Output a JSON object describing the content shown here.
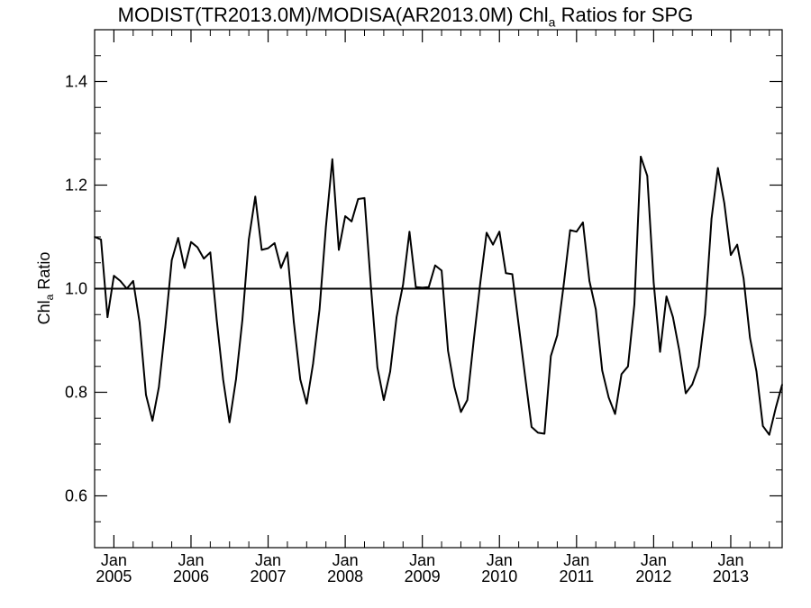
{
  "title": {
    "main": "MODIST(TR2013.0M)/MODISA(AR2013.0M)  Chl",
    "sub": "a",
    "tail": " Ratios for SPG"
  },
  "chart_data": {
    "type": "line",
    "ylabel": {
      "main": "Chl",
      "sub": "a",
      "tail": " Ratio"
    },
    "ylim": [
      0.5,
      1.5
    ],
    "yticks": [
      0.6,
      0.8,
      1.0,
      1.2,
      1.4
    ],
    "ytick_labels": [
      "0.6",
      "0.8",
      "1.0",
      "1.2",
      "1.4"
    ],
    "xlim": [
      "2004-10",
      "2013-09"
    ],
    "xticks": [
      {
        "month": "Jan",
        "year": "2005",
        "date": "2005-01"
      },
      {
        "month": "Jan",
        "year": "2006",
        "date": "2006-01"
      },
      {
        "month": "Jan",
        "year": "2007",
        "date": "2007-01"
      },
      {
        "month": "Jan",
        "year": "2008",
        "date": "2008-01"
      },
      {
        "month": "Jan",
        "year": "2009",
        "date": "2009-01"
      },
      {
        "month": "Jan",
        "year": "2010",
        "date": "2010-01"
      },
      {
        "month": "Jan",
        "year": "2011",
        "date": "2011-01"
      },
      {
        "month": "Jan",
        "year": "2012",
        "date": "2012-01"
      },
      {
        "month": "Jan",
        "year": "2013",
        "date": "2013-01"
      }
    ],
    "reference_line": 1.0,
    "series": [
      {
        "x": [
          "2004-10",
          "2004-11",
          "2004-12",
          "2005-01",
          "2005-02",
          "2005-03",
          "2005-04",
          "2005-05",
          "2005-06",
          "2005-07",
          "2005-08",
          "2005-09",
          "2005-10",
          "2005-11",
          "2005-12",
          "2006-01",
          "2006-02",
          "2006-03",
          "2006-04",
          "2006-05",
          "2006-06",
          "2006-07",
          "2006-08",
          "2006-09",
          "2006-10",
          "2006-11",
          "2006-12",
          "2007-01",
          "2007-02",
          "2007-03",
          "2007-04",
          "2007-05",
          "2007-06",
          "2007-07",
          "2007-08",
          "2007-09",
          "2007-10",
          "2007-11",
          "2007-12",
          "2008-01",
          "2008-02",
          "2008-03",
          "2008-04",
          "2008-05",
          "2008-06",
          "2008-07",
          "2008-08",
          "2008-09",
          "2008-10",
          "2008-11",
          "2008-12",
          "2009-01",
          "2009-02",
          "2009-03",
          "2009-04",
          "2009-05",
          "2009-06",
          "2009-07",
          "2009-08",
          "2009-09",
          "2009-10",
          "2009-11",
          "2009-12",
          "2010-01",
          "2010-02",
          "2010-03",
          "2010-04",
          "2010-05",
          "2010-06",
          "2010-07",
          "2010-08",
          "2010-09",
          "2010-10",
          "2010-11",
          "2010-12",
          "2011-01",
          "2011-02",
          "2011-03",
          "2011-04",
          "2011-05",
          "2011-06",
          "2011-07",
          "2011-08",
          "2011-09",
          "2011-10",
          "2011-11",
          "2011-12",
          "2012-01",
          "2012-02",
          "2012-03",
          "2012-04",
          "2012-05",
          "2012-06",
          "2012-07",
          "2012-08",
          "2012-09",
          "2012-10",
          "2012-11",
          "2012-12",
          "2013-01",
          "2013-02",
          "2013-03",
          "2013-04",
          "2013-05",
          "2013-06",
          "2013-07",
          "2013-08",
          "2013-09"
        ],
        "y": [
          1.1,
          1.095,
          0.945,
          1.025,
          1.015,
          1.0,
          1.015,
          0.935,
          0.795,
          0.745,
          0.81,
          0.925,
          1.055,
          1.098,
          1.04,
          1.09,
          1.08,
          1.058,
          1.07,
          0.94,
          0.825,
          0.742,
          0.825,
          0.94,
          1.095,
          1.178,
          1.075,
          1.078,
          1.088,
          1.04,
          1.07,
          0.935,
          0.825,
          0.778,
          0.855,
          0.96,
          1.12,
          1.25,
          1.075,
          1.14,
          1.13,
          1.173,
          1.175,
          1.005,
          0.848,
          0.785,
          0.84,
          0.945,
          1.008,
          1.11,
          1.003,
          1.002,
          1.003,
          1.045,
          1.035,
          0.88,
          0.81,
          0.762,
          0.785,
          0.9,
          1.01,
          1.108,
          1.085,
          1.11,
          1.03,
          1.028,
          0.93,
          0.83,
          0.733,
          0.722,
          0.72,
          0.87,
          0.91,
          1.008,
          1.113,
          1.11,
          1.128,
          1.015,
          0.96,
          0.842,
          0.79,
          0.758,
          0.835,
          0.85,
          0.97,
          1.255,
          1.218,
          1.012,
          0.878,
          0.985,
          0.945,
          0.88,
          0.798,
          0.815,
          0.85,
          0.95,
          1.135,
          1.233,
          1.165,
          1.065,
          1.085,
          1.02,
          0.905,
          0.84,
          0.735,
          0.718,
          0.77,
          0.815
        ]
      }
    ],
    "grid": false,
    "legend": "none"
  }
}
